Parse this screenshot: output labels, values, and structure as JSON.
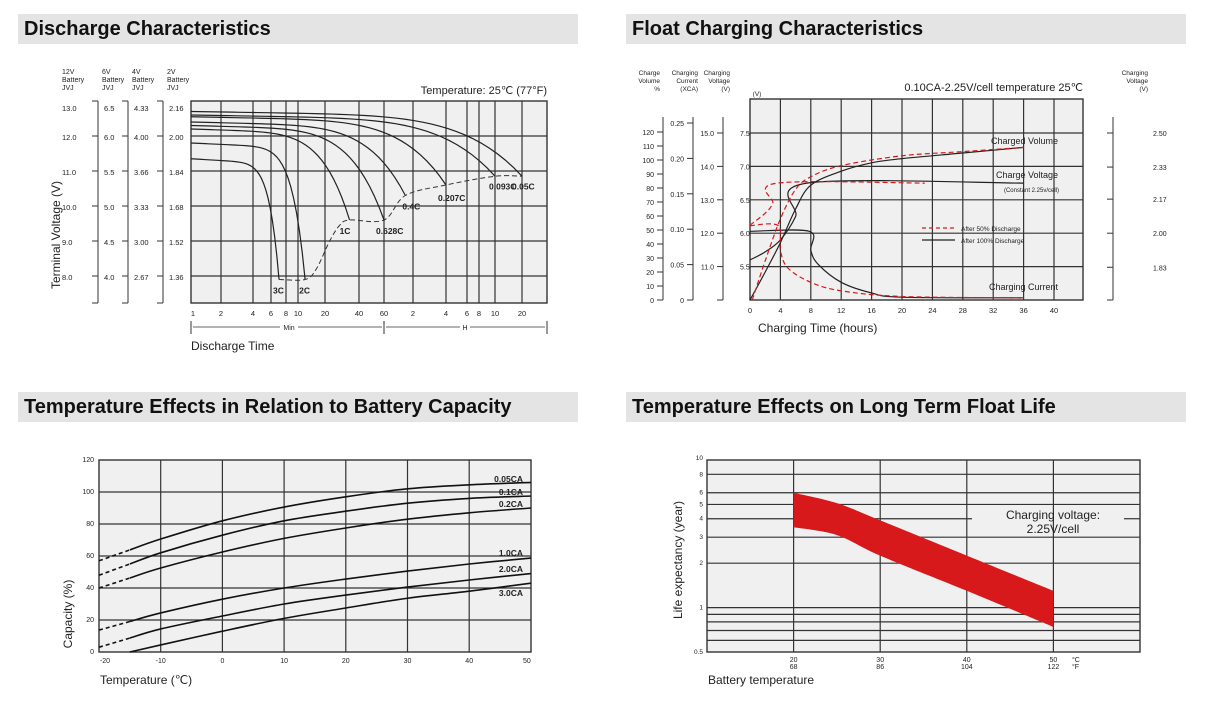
{
  "titles": {
    "discharge": "Discharge Characteristics",
    "float": "Float Charging Characteristics",
    "temp_capacity": "Temperature Effects in Relation to Battery Capacity",
    "float_life": "Temperature Effects on Long Term Float Life"
  },
  "colors": {
    "red": "#d7191c",
    "grid": "#333333",
    "plot_bg": "#f0f0f0",
    "title_bg": "#e4e4e4"
  },
  "chart_data": [
    {
      "type": "line",
      "title": "Discharge Characteristics",
      "annotation": "Temperature: 25℃ (77°F)",
      "xlabel": "Discharge Time",
      "ylabel": "Terminal Voltage (V)",
      "x_scale": "log",
      "x_unit_labels": {
        "min": "Min",
        "hour": "H"
      },
      "x_ticks_minutes": [
        1,
        2,
        4,
        6,
        8,
        10,
        20,
        40,
        60,
        120,
        240,
        360,
        480,
        600,
        1200
      ],
      "x_tick_labels": [
        "1",
        "2",
        "4",
        "6",
        "8",
        "10",
        "20",
        "40",
        "60",
        "2",
        "4",
        "6",
        "8",
        "10",
        "20"
      ],
      "y_axes": [
        {
          "header": [
            "12V",
            "Battery",
            "JVJ"
          ],
          "ticks": [
            "13.0",
            "12.0",
            "11.0",
            "10.0",
            "9.0",
            "8.0"
          ]
        },
        {
          "header": [
            "6V",
            "Battery",
            "JVJ"
          ],
          "ticks": [
            "6.5",
            "6.0",
            "5.5",
            "5.0",
            "4.5",
            "4.0"
          ]
        },
        {
          "header": [
            "4V",
            "Battery",
            "JVJ"
          ],
          "ticks": [
            "4.33",
            "4.00",
            "3.66",
            "3.33",
            "3.00",
            "2.67"
          ]
        },
        {
          "header": [
            "2V",
            "Battery",
            "JVJ"
          ],
          "ticks": [
            "2.16",
            "2.00",
            "1.84",
            "1.68",
            "1.52",
            "1.36"
          ]
        }
      ],
      "y_values_12v": [
        13,
        12,
        11,
        10,
        9,
        8
      ],
      "series": [
        {
          "name": "3C",
          "start_v": 11.35,
          "end_min": 7,
          "end_v": 7.9
        },
        {
          "name": "2C",
          "start_v": 11.8,
          "end_min": 12,
          "end_v": 7.9
        },
        {
          "name": "1C",
          "start_v": 12.2,
          "end_min": 33,
          "end_v": 9.6
        },
        {
          "name": "0.628C",
          "start_v": 12.3,
          "end_min": 60,
          "end_v": 9.6
        },
        {
          "name": "0.4C",
          "start_v": 12.4,
          "end_min": 100,
          "end_v": 10.3
        },
        {
          "name": "0.207C",
          "start_v": 12.55,
          "end_min": 240,
          "end_v": 10.6
        },
        {
          "name": "0.093C",
          "start_v": 12.6,
          "end_min": 600,
          "end_v": 10.85
        },
        {
          "name": "0.05C",
          "start_v": 12.7,
          "end_min": 1200,
          "end_v": 10.85
        }
      ],
      "cutoff_curve": [
        [
          7,
          7.9
        ],
        [
          12,
          7.9
        ],
        [
          16,
          8.2
        ],
        [
          22,
          9.0
        ],
        [
          27,
          9.45
        ],
        [
          33,
          9.6
        ],
        [
          60,
          9.6
        ],
        [
          100,
          10.3
        ],
        [
          240,
          10.6
        ],
        [
          600,
          10.85
        ],
        [
          1200,
          10.85
        ]
      ]
    },
    {
      "type": "line",
      "title": "Float Charging Characteristics",
      "annotation": "0.10CA-2.25V/cell  temperature 25℃",
      "xlabel": "Charging Time (hours)",
      "x_ticks": [
        0,
        4,
        8,
        12,
        16,
        20,
        24,
        28,
        32,
        36,
        40
      ],
      "y_axes": {
        "volume": {
          "header": [
            "Charge",
            "Volume",
            "%"
          ],
          "ticks": [
            0,
            10,
            20,
            30,
            40,
            50,
            60,
            70,
            80,
            90,
            100,
            110,
            120
          ]
        },
        "current": {
          "header": [
            "Charging",
            "Current",
            "(XCA)"
          ],
          "ticks": [
            "0",
            "0.05",
            "0.10",
            "0.15",
            "0.20",
            "0.25"
          ]
        },
        "voltage_12v": {
          "header": [
            "Charging",
            "Voltage",
            "(V)"
          ],
          "ticks": [
            "11.0",
            "12.0",
            "13.0",
            "14.0",
            "15.0"
          ]
        },
        "voltage_6v": {
          "header": "(V)",
          "ticks": [
            "5.5",
            "6.0",
            "6.5",
            "7.0",
            "7.5"
          ]
        },
        "voltage_cell": {
          "header": [
            "Charging",
            "Voltage",
            "(V)"
          ],
          "ticks": [
            "1.83",
            "2.00",
            "2.17",
            "2.33",
            "2.50"
          ]
        }
      },
      "curve_labels": {
        "volume": "Charged Volume",
        "voltage": "Charge Voltage",
        "voltage_note": "(Constant 2.25v/cell)",
        "current": "Charging Current"
      },
      "legend": [
        {
          "name": "After  50% Discharge",
          "style": "dashed",
          "color": "#d7191c"
        },
        {
          "name": "After 100% Discharge",
          "style": "solid",
          "color": "#222222"
        }
      ],
      "series": [
        {
          "group": "After 100% Discharge",
          "quantity": "charge_voltage_6v",
          "points": [
            [
              0,
              5.6
            ],
            [
              2,
              5.72
            ],
            [
              4,
              5.9
            ],
            [
              6,
              6.25
            ],
            [
              7.5,
              6.75
            ],
            [
              36,
              6.75
            ]
          ]
        },
        {
          "group": "After 100% Discharge",
          "quantity": "charged_volume_pct",
          "points": [
            [
              0,
              0
            ],
            [
              2,
              20
            ],
            [
              4,
              41
            ],
            [
              6,
              65
            ],
            [
              8,
              82
            ],
            [
              12,
              92
            ],
            [
              16,
              98
            ],
            [
              20,
              101
            ],
            [
              28,
              105
            ],
            [
              36,
              109
            ]
          ]
        },
        {
          "group": "After 100% Discharge",
          "quantity": "charging_current_ca",
          "points": [
            [
              0,
              0.097
            ],
            [
              7.8,
              0.097
            ],
            [
              8,
              0.07
            ],
            [
              9,
              0.05
            ],
            [
              12,
              0.025
            ],
            [
              16,
              0.01
            ],
            [
              20,
              0.004
            ],
            [
              36,
              0.003
            ]
          ]
        },
        {
          "group": "After  50% Discharge",
          "quantity": "charge_voltage_6v",
          "points": [
            [
              0,
              6.12
            ],
            [
              2,
              6.3
            ],
            [
              3,
              6.45
            ],
            [
              3.6,
              6.75
            ],
            [
              23,
              6.75
            ]
          ]
        },
        {
          "group": "After  50% Discharge",
          "quantity": "charged_volume_pct",
          "points": [
            [
              0.3,
              0
            ],
            [
              2,
              28
            ],
            [
              4,
              58
            ],
            [
              6,
              79
            ],
            [
              8,
              88
            ],
            [
              12,
              96
            ],
            [
              20,
              103
            ],
            [
              28,
              106
            ],
            [
              36,
              109
            ]
          ]
        },
        {
          "group": "After  50% Discharge",
          "quantity": "charging_current_ca",
          "points": [
            [
              0,
              0.105
            ],
            [
              3.7,
              0.105
            ],
            [
              4,
              0.07
            ],
            [
              5,
              0.045
            ],
            [
              8,
              0.025
            ],
            [
              12,
              0.013
            ],
            [
              20,
              0.005
            ],
            [
              36,
              0.003
            ]
          ]
        }
      ]
    },
    {
      "type": "line",
      "title": "Temperature Effects in Relation to Battery Capacity",
      "xlabel": "Temperature (℃)",
      "ylabel": "Capacity (%)",
      "x": [
        -20,
        -10,
        0,
        10,
        20,
        30,
        40,
        50
      ],
      "x_tick_labels": [
        "-20",
        "-10",
        "0",
        "10",
        "20",
        "30",
        "40",
        "50"
      ],
      "y_ticks": [
        "0",
        "20",
        "40",
        "60",
        "80",
        "100",
        "120"
      ],
      "ylim": [
        0,
        120
      ],
      "xlim": [
        -20,
        50
      ],
      "series": [
        {
          "name": "0.05CA",
          "values": [
            57,
            70.6,
            82,
            90.6,
            97,
            102,
            104.5,
            106
          ]
        },
        {
          "name": "0.1CA",
          "values": [
            48,
            62,
            73,
            82,
            88,
            93,
            96,
            97.5
          ]
        },
        {
          "name": "0.2CA",
          "values": [
            40,
            52.5,
            62.5,
            71,
            77.5,
            83,
            87,
            90
          ]
        },
        {
          "name": "1.0CA",
          "values": [
            13.7,
            24.4,
            33,
            40,
            45.6,
            50.6,
            55,
            58.7
          ]
        },
        {
          "name": "2.0CA",
          "values": [
            3,
            14.4,
            22.5,
            30,
            35.6,
            40.6,
            45,
            49
          ]
        },
        {
          "name": "3.0CA",
          "values": [
            null,
            4.4,
            13,
            21,
            27.5,
            33.6,
            38,
            43
          ],
          "zero_at": -15
        }
      ]
    },
    {
      "type": "area",
      "title": "Temperature Effects on Long Term Float Life",
      "xlabel": "Battery temperature",
      "ylabel": "Life expectancy (year)",
      "y_scale": "log",
      "ylim": [
        0.5,
        10
      ],
      "xlim": [
        10,
        60
      ],
      "y_ticks": [
        "10",
        "8",
        "6",
        "5",
        "4",
        "3",
        "2",
        "1",
        "0.5"
      ],
      "x_ticks_c": [
        "20",
        "30",
        "40",
        "50"
      ],
      "x_ticks_f": [
        "68",
        "86",
        "104",
        "122"
      ],
      "x_units": {
        "c": "°C",
        "f": "°F"
      },
      "annotation": [
        "Charging voltage:",
        "2.25V/cell"
      ],
      "band": {
        "x": [
          20,
          25,
          30,
          40,
          50
        ],
        "upper": [
          6.0,
          5.1,
          3.9,
          2.25,
          1.3
        ],
        "lower": [
          3.5,
          3.1,
          2.25,
          1.3,
          0.74
        ]
      }
    }
  ]
}
